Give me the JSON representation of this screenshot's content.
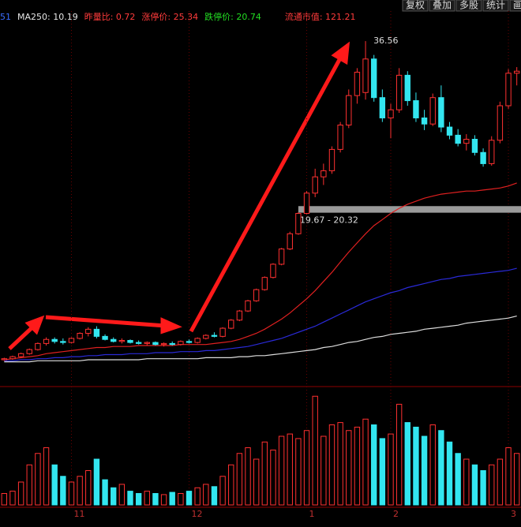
{
  "chart_data": {
    "type": "candlestick",
    "header_items": [
      {
        "text": "51",
        "color": "#3a6cff"
      },
      {
        "text": "MA250: 10.19",
        "color": "#e6e6e6"
      },
      {
        "text": "昨量比: 0.72",
        "color": "#ff3b3b"
      },
      {
        "text": "涨停价: 25.34",
        "color": "#ff3b3b"
      },
      {
        "text": "跌停价: 20.74",
        "color": "#22dd22"
      },
      {
        "text": "流通市值: 121.21",
        "color": "#ff3b3b"
      }
    ],
    "buttons": [
      "复权",
      "叠加",
      "多股",
      "统计",
      "画线"
    ],
    "categories": [
      null,
      null,
      null,
      null,
      null,
      null,
      null,
      null,
      "11",
      null,
      null,
      null,
      null,
      null,
      null,
      null,
      null,
      null,
      null,
      null,
      null,
      null,
      "12",
      null,
      null,
      null,
      null,
      null,
      null,
      null,
      null,
      null,
      null,
      null,
      null,
      null,
      "1",
      null,
      null,
      null,
      null,
      null,
      null,
      null,
      null,
      null,
      "2",
      null,
      null,
      null,
      null,
      null,
      null,
      null,
      null,
      null,
      null,
      null,
      null,
      null,
      "3",
      null
    ],
    "candles": [
      [
        5.2,
        5.4,
        5.1,
        5.3
      ],
      [
        5.3,
        5.6,
        5.2,
        5.5
      ],
      [
        5.5,
        5.9,
        5.4,
        5.8
      ],
      [
        5.8,
        6.3,
        5.7,
        6.2
      ],
      [
        6.2,
        6.9,
        6.1,
        6.8
      ],
      [
        6.8,
        7.4,
        6.6,
        7.2
      ],
      [
        7.2,
        7.4,
        6.8,
        7.0
      ],
      [
        7.0,
        7.3,
        6.7,
        6.9
      ],
      [
        6.9,
        7.4,
        6.8,
        7.3
      ],
      [
        7.3,
        7.9,
        7.2,
        7.8
      ],
      [
        7.8,
        8.4,
        7.5,
        8.2
      ],
      [
        8.2,
        8.5,
        7.3,
        7.5
      ],
      [
        7.5,
        7.7,
        7.1,
        7.2
      ],
      [
        7.2,
        7.4,
        6.9,
        7.0
      ],
      [
        7.0,
        7.3,
        6.8,
        7.1
      ],
      [
        7.1,
        7.2,
        6.8,
        6.9
      ],
      [
        6.9,
        7.1,
        6.7,
        6.8
      ],
      [
        6.8,
        7.0,
        6.6,
        6.9
      ],
      [
        6.9,
        7.0,
        6.6,
        6.7
      ],
      [
        6.7,
        6.9,
        6.5,
        6.8
      ],
      [
        6.8,
        7.0,
        6.6,
        6.7
      ],
      [
        6.7,
        7.1,
        6.6,
        7.0
      ],
      [
        7.0,
        7.2,
        6.8,
        6.9
      ],
      [
        6.9,
        7.4,
        6.8,
        7.3
      ],
      [
        7.3,
        7.7,
        7.2,
        7.6
      ],
      [
        7.6,
        7.9,
        7.4,
        7.5
      ],
      [
        7.5,
        8.4,
        7.4,
        8.3
      ],
      [
        8.3,
        9.2,
        8.2,
        9.1
      ],
      [
        9.1,
        10.1,
        9.0,
        10.0
      ],
      [
        10.0,
        11.1,
        9.9,
        11.0
      ],
      [
        11.0,
        12.2,
        10.9,
        12.1
      ],
      [
        12.1,
        13.4,
        12.0,
        13.3
      ],
      [
        13.3,
        14.7,
        13.2,
        14.6
      ],
      [
        14.6,
        16.2,
        14.5,
        16.1
      ],
      [
        16.1,
        17.8,
        16.0,
        17.6
      ],
      [
        17.6,
        19.7,
        17.5,
        19.6
      ],
      [
        19.6,
        21.8,
        19.5,
        21.6
      ],
      [
        21.6,
        24.0,
        21.2,
        23.2
      ],
      [
        23.2,
        24.5,
        22.4,
        23.8
      ],
      [
        23.8,
        26.2,
        23.5,
        25.9
      ],
      [
        25.9,
        28.6,
        25.6,
        28.3
      ],
      [
        28.3,
        31.8,
        28.0,
        31.2
      ],
      [
        31.2,
        33.9,
        30.4,
        33.5
      ],
      [
        31.5,
        36.56,
        30.8,
        34.8
      ],
      [
        34.8,
        35.2,
        30.6,
        31.0
      ],
      [
        31.0,
        31.8,
        28.6,
        29.0
      ],
      [
        29.0,
        30.4,
        27.0,
        29.8
      ],
      [
        29.8,
        33.9,
        29.5,
        33.2
      ],
      [
        33.2,
        33.6,
        30.2,
        30.7
      ],
      [
        30.7,
        31.5,
        28.6,
        29.0
      ],
      [
        29.0,
        29.8,
        27.8,
        28.4
      ],
      [
        28.4,
        31.4,
        28.2,
        31.0
      ],
      [
        31.0,
        32.2,
        27.6,
        28.1
      ],
      [
        28.1,
        28.6,
        26.9,
        27.3
      ],
      [
        27.3,
        27.9,
        26.2,
        26.5
      ],
      [
        26.5,
        27.4,
        25.8,
        26.9
      ],
      [
        26.9,
        27.3,
        25.3,
        25.6
      ],
      [
        25.6,
        26.0,
        24.2,
        24.5
      ],
      [
        24.5,
        27.2,
        24.3,
        26.8
      ],
      [
        26.8,
        30.6,
        26.5,
        30.2
      ],
      [
        30.2,
        33.8,
        29.9,
        33.4
      ],
      [
        33.4,
        34.0,
        32.2,
        33.6
      ]
    ],
    "up_color": "#ff3030",
    "down_color": "#33e6f0",
    "ylim": [
      4.5,
      37.5
    ],
    "lines": [
      {
        "color": "#dddddd",
        "values": [
          5.0,
          5.0,
          5.0,
          5.0,
          5.1,
          5.1,
          5.1,
          5.1,
          5.1,
          5.1,
          5.2,
          5.2,
          5.2,
          5.2,
          5.2,
          5.2,
          5.2,
          5.3,
          5.3,
          5.3,
          5.3,
          5.3,
          5.3,
          5.3,
          5.4,
          5.4,
          5.4,
          5.4,
          5.5,
          5.5,
          5.6,
          5.6,
          5.7,
          5.8,
          5.9,
          6.0,
          6.1,
          6.2,
          6.4,
          6.5,
          6.7,
          6.9,
          7.0,
          7.2,
          7.4,
          7.5,
          7.7,
          7.8,
          7.9,
          8.0,
          8.2,
          8.3,
          8.4,
          8.5,
          8.6,
          8.8,
          8.9,
          9.0,
          9.1,
          9.2,
          9.3,
          9.5
        ]
      },
      {
        "color": "#2a2ad8",
        "values": [
          5.1,
          5.1,
          5.2,
          5.2,
          5.3,
          5.3,
          5.4,
          5.4,
          5.5,
          5.5,
          5.6,
          5.6,
          5.7,
          5.7,
          5.7,
          5.8,
          5.8,
          5.8,
          5.9,
          5.9,
          5.9,
          6.0,
          6.0,
          6.0,
          6.1,
          6.1,
          6.2,
          6.3,
          6.4,
          6.5,
          6.7,
          6.9,
          7.1,
          7.3,
          7.6,
          7.9,
          8.2,
          8.5,
          8.9,
          9.3,
          9.7,
          10.1,
          10.5,
          10.9,
          11.2,
          11.5,
          11.8,
          12.0,
          12.3,
          12.5,
          12.7,
          12.9,
          13.1,
          13.2,
          13.4,
          13.5,
          13.6,
          13.7,
          13.8,
          13.9,
          14.0,
          14.2
        ]
      },
      {
        "color": "#e02020",
        "values": [
          5.2,
          5.3,
          5.4,
          5.5,
          5.6,
          5.8,
          5.9,
          6.0,
          6.1,
          6.2,
          6.3,
          6.4,
          6.4,
          6.5,
          6.5,
          6.5,
          6.6,
          6.6,
          6.6,
          6.6,
          6.6,
          6.7,
          6.7,
          6.7,
          6.7,
          6.8,
          6.9,
          7.0,
          7.2,
          7.5,
          7.8,
          8.2,
          8.7,
          9.2,
          9.8,
          10.5,
          11.2,
          12.0,
          12.9,
          13.8,
          14.8,
          15.8,
          16.7,
          17.6,
          18.4,
          19.0,
          19.6,
          20.1,
          20.5,
          20.8,
          21.1,
          21.3,
          21.5,
          21.6,
          21.7,
          21.8,
          21.8,
          21.9,
          22.0,
          22.1,
          22.3,
          22.6
        ]
      }
    ],
    "band": {
      "label": "19.67 - 20.32",
      "low": 19.67,
      "high": 20.32,
      "start_index": 35
    },
    "peak_index": 43,
    "volume": [
      10,
      12,
      20,
      35,
      45,
      50,
      35,
      25,
      20,
      25,
      30,
      40,
      22,
      15,
      18,
      12,
      10,
      12,
      10,
      9,
      11,
      10,
      12,
      15,
      18,
      16,
      25,
      35,
      45,
      50,
      40,
      55,
      48,
      60,
      62,
      58,
      65,
      95,
      60,
      70,
      72,
      65,
      68,
      75,
      70,
      58,
      62,
      88,
      72,
      68,
      60,
      70,
      65,
      55,
      45,
      40,
      35,
      30,
      35,
      40,
      50,
      45
    ],
    "vlim": [
      0,
      100
    ]
  }
}
